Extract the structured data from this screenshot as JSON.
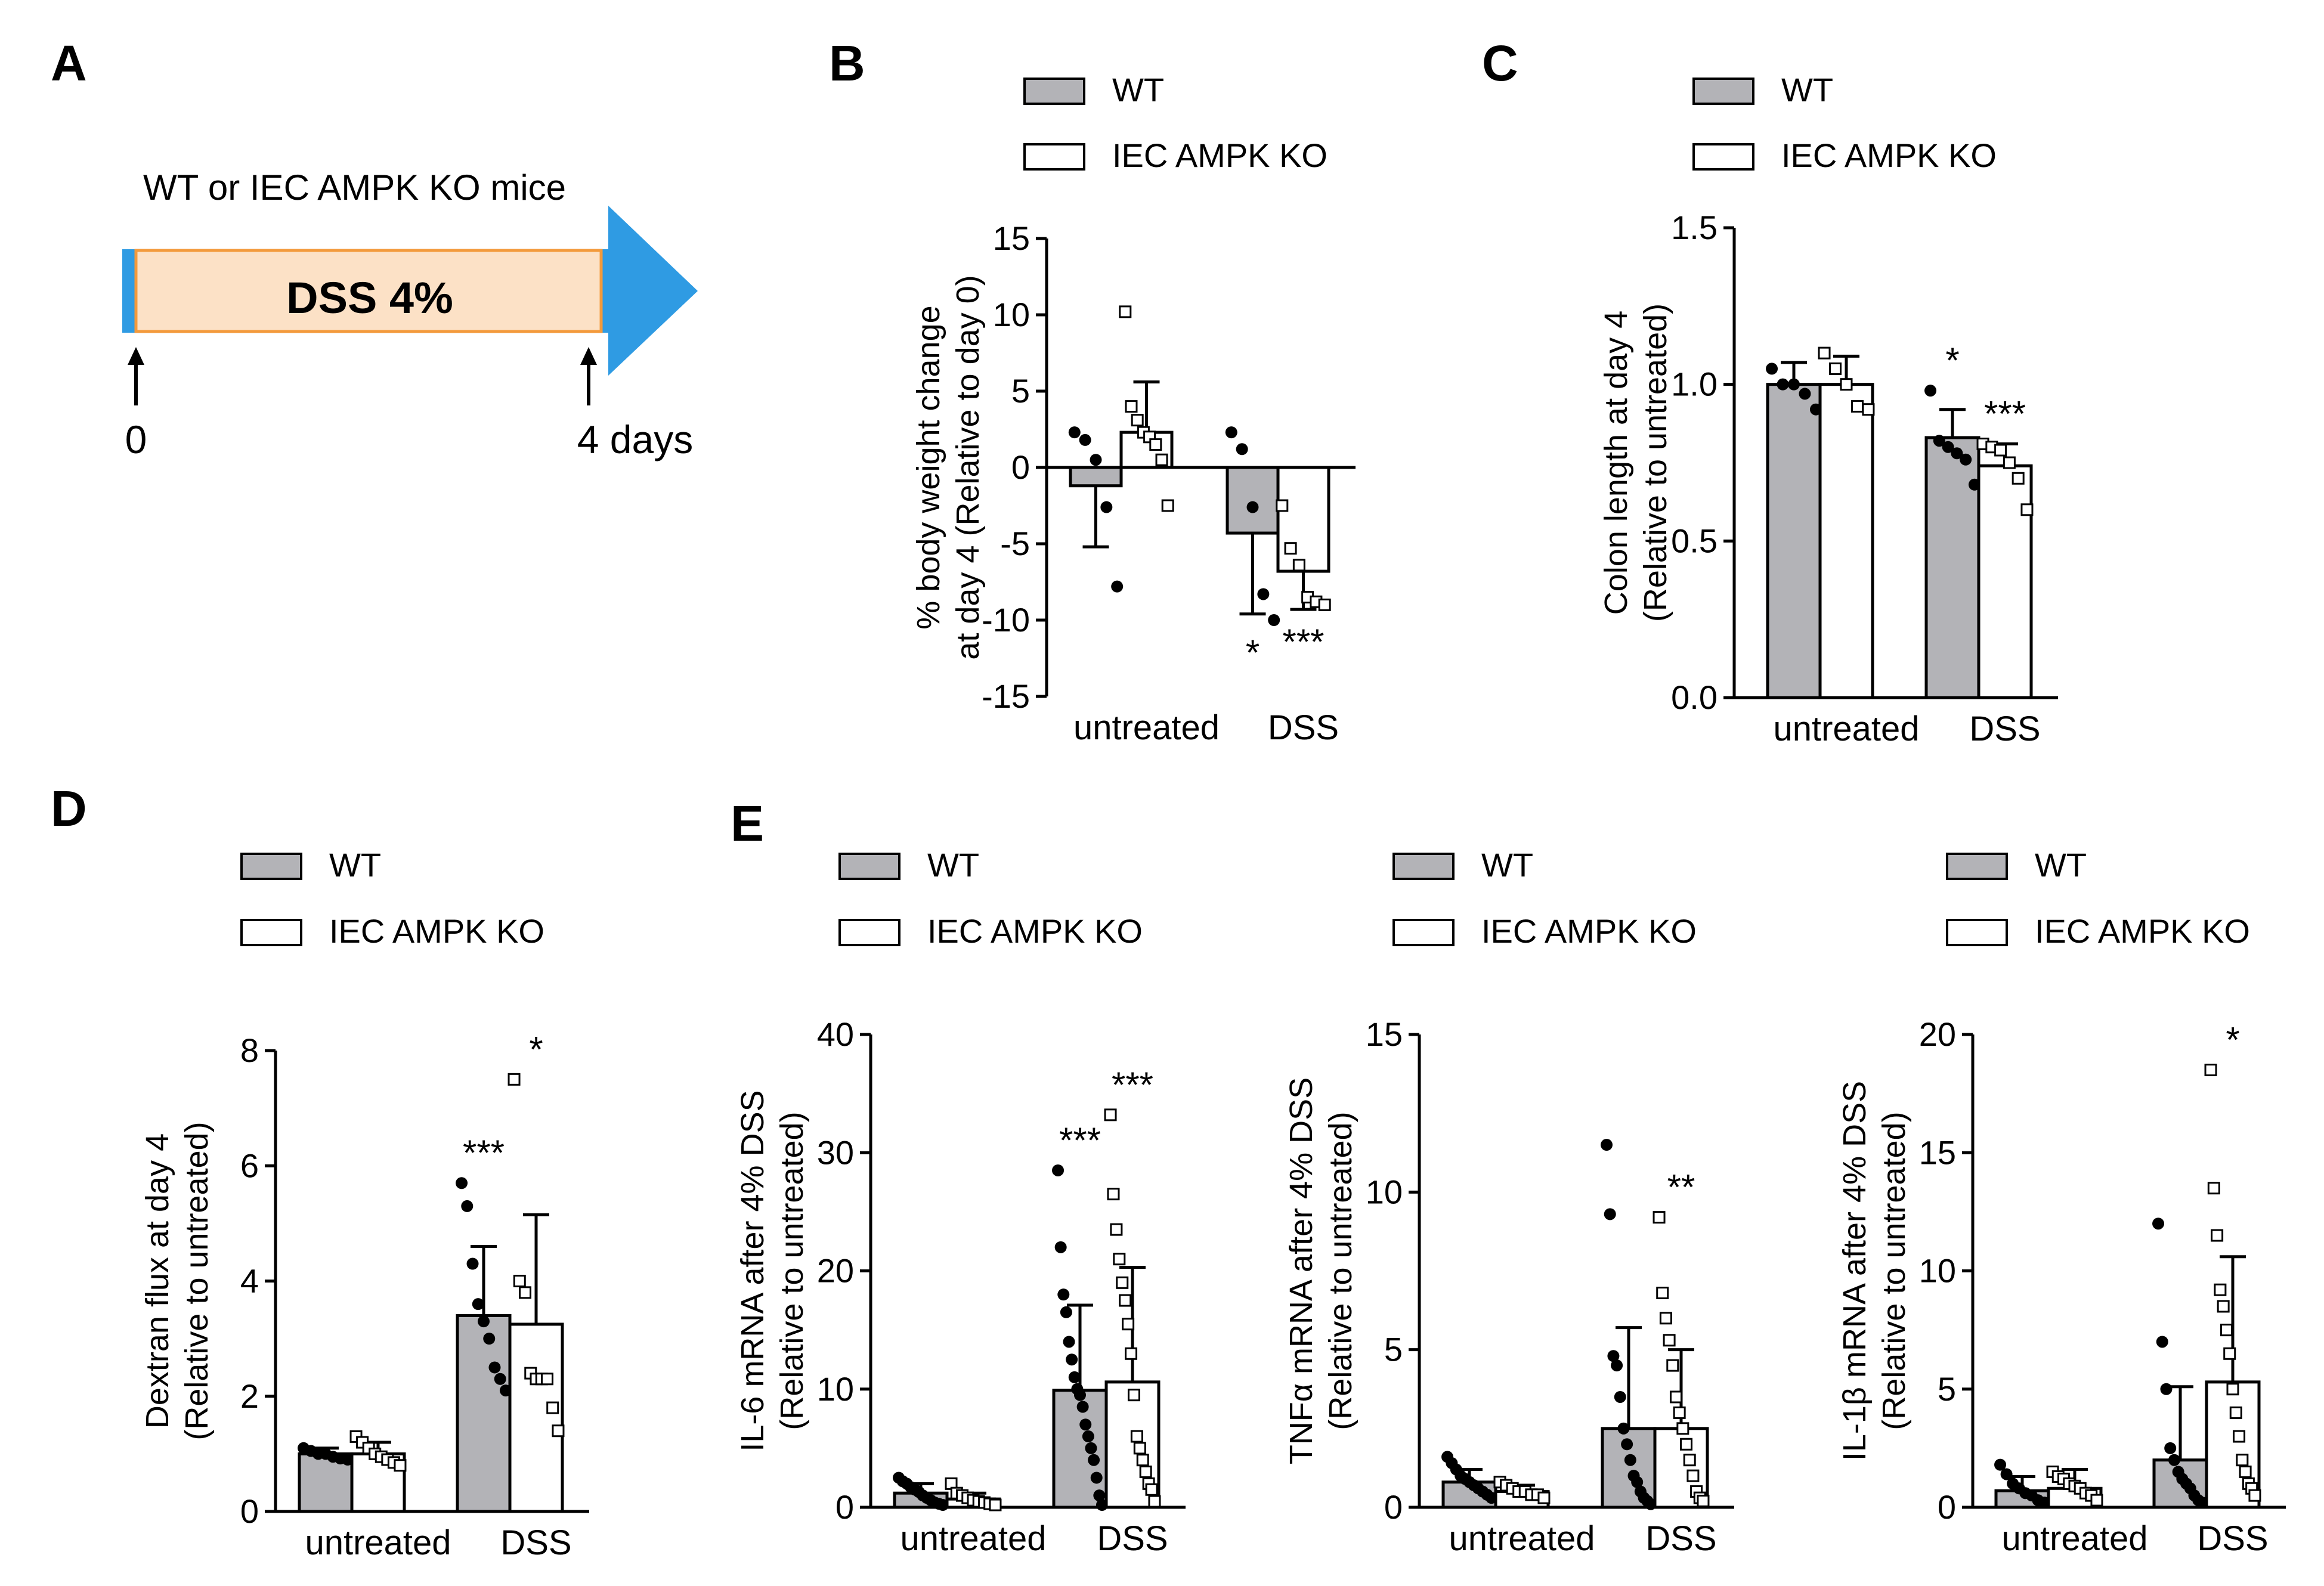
{
  "colors": {
    "wt_fill": "#b3b3b7",
    "ko_fill": "#ffffff",
    "stroke": "#000000",
    "arrow_blue": "#2f9be3",
    "dss_fill": "#fce1c6",
    "dss_border": "#f39a3c"
  },
  "legend": {
    "wt": "WT",
    "ko": "IEC AMPK KO"
  },
  "timeline": {
    "letter": "A",
    "title": "WT or IEC AMPK KO mice",
    "treatment": "DSS 4%",
    "start": "0",
    "end": "4 days"
  },
  "chart_data": [
    {
      "id": "B",
      "type": "bar",
      "ylabel": [
        "% body weight change",
        "at day 4 (Relative to day 0)"
      ],
      "ylim": [
        -15,
        15
      ],
      "yticks": [
        "15",
        "10",
        "5",
        "0",
        "-5",
        "-10",
        "-15"
      ],
      "categories": [
        "untreated",
        "DSS"
      ],
      "series": [
        {
          "name": "WT",
          "values": [
            -1.2,
            -4.3
          ],
          "sd": [
            4.0,
            5.3
          ],
          "points": [
            [
              2.3,
              1.8,
              0.5,
              -2.6,
              -7.8
            ],
            [
              2.3,
              1.2,
              -2.6,
              -8.3,
              -10.0
            ]
          ]
        },
        {
          "name": "IEC AMPK KO",
          "values": [
            2.3,
            -6.8
          ],
          "sd": [
            3.3,
            2.5
          ],
          "points": [
            [
              10.2,
              4.0,
              3.1,
              2.3,
              2.0,
              1.5,
              0.5,
              -2.5
            ],
            [
              -2.5,
              -5.3,
              -6.4,
              -8.5,
              -8.8,
              -9.0
            ]
          ]
        }
      ],
      "significance": [
        [
          "",
          ""
        ],
        [
          "*",
          "***"
        ]
      ]
    },
    {
      "id": "C",
      "type": "bar",
      "ylabel": [
        "Colon length at day 4",
        "(Relative to untreated)"
      ],
      "ylim": [
        0,
        1.5
      ],
      "yticks": [
        "1.5",
        "1.0",
        "0.5",
        "0.0"
      ],
      "categories": [
        "untreated",
        "DSS"
      ],
      "series": [
        {
          "name": "WT",
          "values": [
            1.0,
            0.83
          ],
          "sd": [
            0.07,
            0.09
          ],
          "points": [
            [
              1.05,
              1.0,
              1.0,
              0.97,
              0.92
            ],
            [
              0.98,
              0.82,
              0.8,
              0.78,
              0.76,
              0.68
            ]
          ]
        },
        {
          "name": "IEC AMPK KO",
          "values": [
            1.0,
            0.74
          ],
          "sd": [
            0.09,
            0.07
          ],
          "points": [
            [
              1.1,
              1.05,
              1.0,
              0.93,
              0.92
            ],
            [
              0.81,
              0.8,
              0.79,
              0.75,
              0.7,
              0.6
            ]
          ]
        }
      ],
      "significance": [
        [
          "",
          ""
        ],
        [
          "*",
          "***"
        ]
      ]
    },
    {
      "id": "D",
      "type": "bar",
      "ylabel": [
        "Dextran flux at day 4",
        "(Relative to untreated)"
      ],
      "ylim": [
        0,
        8
      ],
      "yticks": [
        "8",
        "6",
        "4",
        "2",
        "0"
      ],
      "categories": [
        "untreated",
        "DSS"
      ],
      "series": [
        {
          "name": "WT",
          "values": [
            1.0,
            3.4
          ],
          "sd": [
            0.1,
            1.2
          ],
          "points": [
            [
              1.1,
              1.05,
              1.0,
              1.0,
              0.95,
              0.92,
              0.9
            ],
            [
              5.7,
              5.3,
              4.3,
              3.6,
              3.3,
              3.0,
              2.5,
              2.3,
              2.1
            ]
          ]
        },
        {
          "name": "IEC AMPK KO",
          "values": [
            1.0,
            3.25
          ],
          "sd": [
            0.2,
            1.9
          ],
          "points": [
            [
              1.3,
              1.2,
              1.1,
              1.0,
              0.95,
              0.9,
              0.85,
              0.8
            ],
            [
              7.5,
              4.0,
              3.8,
              2.4,
              2.3,
              2.3,
              2.3,
              1.8,
              1.4
            ]
          ]
        }
      ],
      "significance": [
        [
          "",
          ""
        ],
        [
          "***",
          "*"
        ]
      ]
    },
    {
      "id": "E1",
      "type": "bar",
      "ylabel": [
        "IL-6 mRNA after 4% DSS",
        "(Relative to untreated)"
      ],
      "ylim": [
        0,
        40
      ],
      "yticks": [
        "40",
        "30",
        "20",
        "10",
        "0"
      ],
      "categories": [
        "untreated",
        "DSS"
      ],
      "series": [
        {
          "name": "WT",
          "values": [
            1.2,
            9.9
          ],
          "sd": [
            0.8,
            7.2
          ],
          "points": [
            [
              2.5,
              2.2,
              2.0,
              1.7,
              1.5,
              1.3,
              1.0,
              0.8,
              0.6,
              0.4,
              0.3,
              0.2
            ],
            [
              28.5,
              22.0,
              18.0,
              16.5,
              14.0,
              12.5,
              11.0,
              10.0,
              9.5,
              8.5,
              7.0,
              6.0,
              5.0,
              4.0,
              2.5,
              1.0,
              0.2
            ]
          ]
        },
        {
          "name": "IEC AMPK KO",
          "values": [
            0.7,
            10.6
          ],
          "sd": [
            0.5,
            9.7
          ],
          "points": [
            [
              2.0,
              1.2,
              1.0,
              0.8,
              0.6,
              0.5,
              0.4,
              0.3,
              0.2
            ],
            [
              33.2,
              26.5,
              23.5,
              21.0,
              19.0,
              17.5,
              15.5,
              13.0,
              9.5,
              6.0,
              5.0,
              4.0,
              3.0,
              2.0,
              1.5,
              0.5
            ]
          ]
        }
      ],
      "significance": [
        [
          "",
          ""
        ],
        [
          "***",
          "***"
        ]
      ]
    },
    {
      "id": "E2",
      "type": "bar",
      "ylabel": [
        "TNFα mRNA after 4% DSS",
        "(Relative to untreated)"
      ],
      "ylim": [
        0,
        15
      ],
      "yticks": [
        "15",
        "10",
        "5",
        "0"
      ],
      "categories": [
        "untreated",
        "DSS"
      ],
      "series": [
        {
          "name": "WT",
          "values": [
            0.8,
            2.5
          ],
          "sd": [
            0.4,
            3.2
          ],
          "points": [
            [
              1.6,
              1.4,
              1.2,
              1.0,
              0.9,
              0.8,
              0.7,
              0.6,
              0.5,
              0.4,
              0.3
            ],
            [
              11.5,
              9.3,
              4.8,
              4.5,
              3.5,
              2.5,
              2.0,
              1.5,
              1.0,
              0.8,
              0.5,
              0.3,
              0.2,
              0.1
            ]
          ]
        },
        {
          "name": "IEC AMPK KO",
          "values": [
            0.5,
            2.5
          ],
          "sd": [
            0.2,
            2.5
          ],
          "points": [
            [
              0.8,
              0.7,
              0.6,
              0.5,
              0.5,
              0.4,
              0.4,
              0.3
            ],
            [
              9.2,
              6.8,
              6.0,
              5.3,
              4.5,
              3.5,
              3.0,
              2.5,
              2.0,
              1.5,
              1.0,
              0.5,
              0.3,
              0.2
            ]
          ]
        }
      ],
      "significance": [
        [
          "",
          ""
        ],
        [
          "",
          "**"
        ]
      ]
    },
    {
      "id": "E3",
      "type": "bar",
      "ylabel": [
        "IL-1β mRNA after 4% DSS",
        "(Relative to untreated)"
      ],
      "ylim": [
        0,
        20
      ],
      "yticks": [
        "20",
        "15",
        "10",
        "5",
        "0"
      ],
      "categories": [
        "untreated",
        "DSS"
      ],
      "series": [
        {
          "name": "WT",
          "values": [
            0.7,
            2.0
          ],
          "sd": [
            0.6,
            3.1
          ],
          "points": [
            [
              1.8,
              1.4,
              1.0,
              0.8,
              0.6,
              0.5,
              0.3,
              0.2
            ],
            [
              12.0,
              7.0,
              5.0,
              2.5,
              2.0,
              1.5,
              1.2,
              1.0,
              0.8,
              0.5,
              0.3,
              0.2
            ]
          ]
        },
        {
          "name": "IEC AMPK KO",
          "values": [
            0.8,
            5.3
          ],
          "sd": [
            0.8,
            5.3
          ],
          "points": [
            [
              1.5,
              1.3,
              1.2,
              1.0,
              0.9,
              0.8,
              0.6,
              0.5,
              0.3
            ],
            [
              18.5,
              13.5,
              11.5,
              9.2,
              8.5,
              7.5,
              6.5,
              5.0,
              4.0,
              3.0,
              2.0,
              1.5,
              1.0,
              0.8,
              0.5
            ]
          ]
        }
      ],
      "significance": [
        [
          "",
          ""
        ],
        [
          "",
          "*"
        ]
      ]
    }
  ],
  "panel_letters": {
    "B": "B",
    "C": "C",
    "D": "D",
    "E": "E"
  }
}
